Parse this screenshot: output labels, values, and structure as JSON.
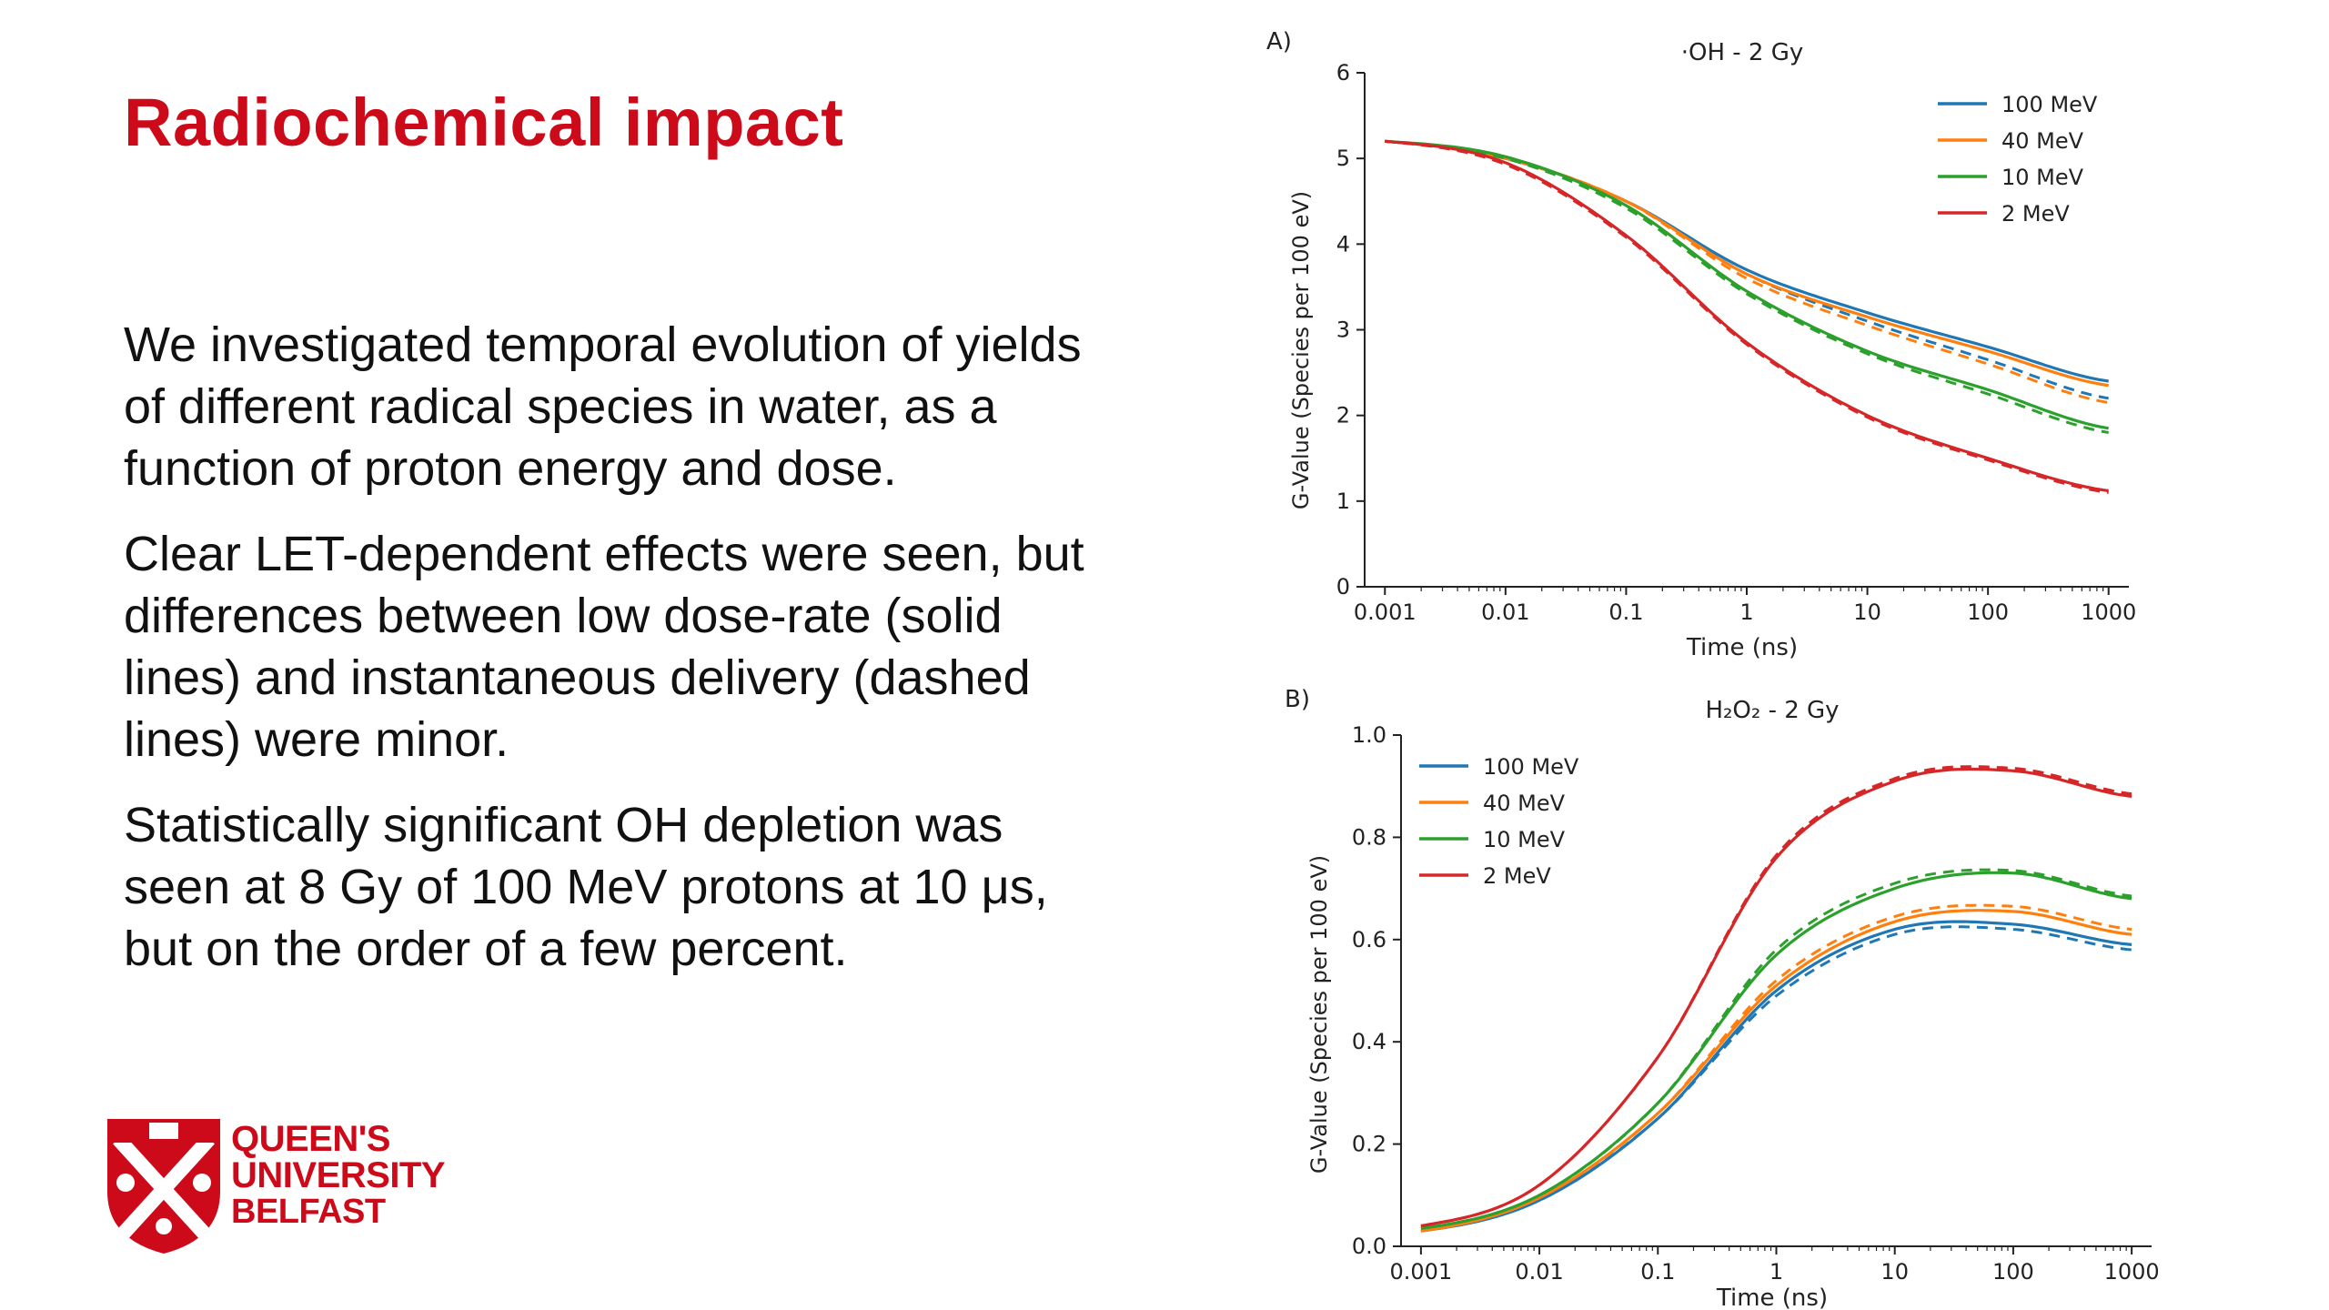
{
  "slide": {
    "title": "Radiochemical impact",
    "paragraphs": [
      "We investigated temporal evolution of yields of different radical species in water, as a function of proton energy and dose.",
      "Clear LET-dependent effects were seen, but differences between low dose-rate (solid lines) and instantaneous delivery (dashed lines) were minor.",
      "Statistically significant OH depletion was seen at 8 Gy of 100 MeV protons at 10 μs, but on the order of a few percent."
    ],
    "logo": {
      "line1": "QUEEN'S",
      "line2": "UNIVERSITY",
      "line3": "BELFAST",
      "color": "#cc0a1a"
    }
  },
  "chart_data": [
    {
      "panel": "A)",
      "type": "line",
      "title": "·OH - 2 Gy",
      "xlabel": "Time (ns)",
      "ylabel": "G-Value (Species per 100 eV)",
      "xscale": "log",
      "xlim": [
        0.001,
        1000
      ],
      "ylim": [
        0,
        6
      ],
      "xticks": [
        "0.001",
        "0.01",
        "0.1",
        "1",
        "10",
        "100",
        "1000"
      ],
      "yticks": [
        "0",
        "1",
        "2",
        "3",
        "4",
        "5",
        "6"
      ],
      "legend_position": "top-right",
      "line_styles": {
        "solid": "low dose-rate",
        "dashed": "instantaneous delivery"
      },
      "x": [
        0.001,
        0.01,
        0.1,
        1,
        10,
        100,
        1000
      ],
      "series": [
        {
          "name": "100 MeV",
          "color": "#1f77b4",
          "solid": [
            5.2,
            5.0,
            4.5,
            3.7,
            3.2,
            2.8,
            2.4
          ],
          "dashed": [
            5.2,
            5.0,
            4.5,
            3.65,
            3.1,
            2.65,
            2.2
          ]
        },
        {
          "name": "40 MeV",
          "color": "#ff7f0e",
          "solid": [
            5.2,
            5.0,
            4.5,
            3.65,
            3.15,
            2.75,
            2.35
          ],
          "dashed": [
            5.2,
            5.0,
            4.5,
            3.6,
            3.05,
            2.6,
            2.15
          ]
        },
        {
          "name": "10 MeV",
          "color": "#2ca02c",
          "solid": [
            5.2,
            5.02,
            4.45,
            3.45,
            2.75,
            2.3,
            1.85
          ],
          "dashed": [
            5.2,
            5.0,
            4.42,
            3.42,
            2.72,
            2.25,
            1.8
          ]
        },
        {
          "name": "2 MeV",
          "color": "#d62728",
          "solid": [
            5.2,
            4.95,
            4.1,
            2.85,
            2.0,
            1.5,
            1.12
          ],
          "dashed": [
            5.2,
            4.93,
            4.08,
            2.83,
            1.98,
            1.48,
            1.1
          ]
        }
      ]
    },
    {
      "panel": "B)",
      "type": "line",
      "title": "H₂O₂ - 2 Gy",
      "xlabel": "Time (ns)",
      "ylabel": "G-Value (Species per 100 eV)",
      "xscale": "log",
      "xlim": [
        0.001,
        1000
      ],
      "ylim": [
        0.0,
        1.0
      ],
      "xticks": [
        "0.001",
        "0.01",
        "0.1",
        "1",
        "10",
        "100",
        "1000"
      ],
      "yticks": [
        "0.0",
        "0.2",
        "0.4",
        "0.6",
        "0.8",
        "1.0"
      ],
      "legend_position": "top-left",
      "line_styles": {
        "solid": "low dose-rate",
        "dashed": "instantaneous delivery"
      },
      "x": [
        0.001,
        0.01,
        0.1,
        1,
        10,
        100,
        1000
      ],
      "series": [
        {
          "name": "100 MeV",
          "color": "#1f77b4",
          "solid": [
            0.03,
            0.09,
            0.25,
            0.5,
            0.62,
            0.63,
            0.59
          ],
          "dashed": [
            0.03,
            0.09,
            0.25,
            0.49,
            0.61,
            0.62,
            0.58
          ]
        },
        {
          "name": "40 MeV",
          "color": "#ff7f0e",
          "solid": [
            0.03,
            0.095,
            0.26,
            0.51,
            0.635,
            0.655,
            0.61
          ],
          "dashed": [
            0.03,
            0.095,
            0.26,
            0.52,
            0.645,
            0.665,
            0.62
          ]
        },
        {
          "name": "10 MeV",
          "color": "#2ca02c",
          "solid": [
            0.035,
            0.1,
            0.28,
            0.57,
            0.7,
            0.73,
            0.68
          ],
          "dashed": [
            0.035,
            0.1,
            0.28,
            0.58,
            0.71,
            0.735,
            0.685
          ]
        },
        {
          "name": "2 MeV",
          "color": "#d62728",
          "solid": [
            0.04,
            0.12,
            0.37,
            0.76,
            0.91,
            0.93,
            0.88
          ],
          "dashed": [
            0.04,
            0.12,
            0.37,
            0.765,
            0.915,
            0.935,
            0.885
          ]
        }
      ]
    }
  ]
}
